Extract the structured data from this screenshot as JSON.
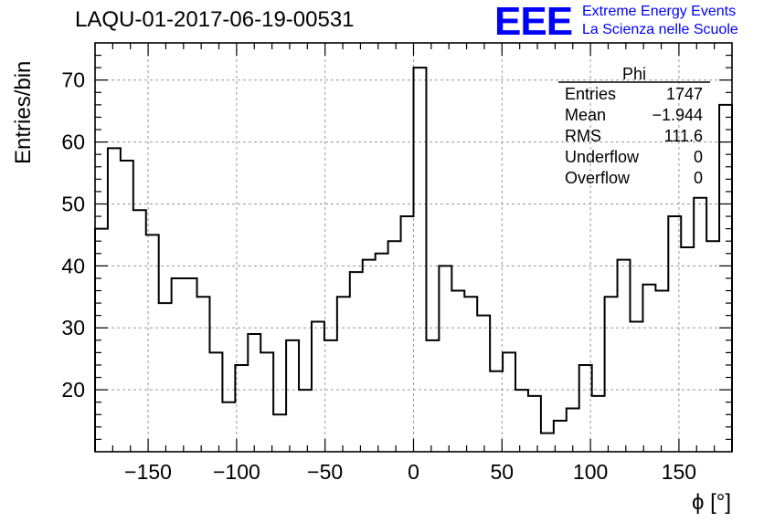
{
  "title": "LAQU-01-2017-06-19-00531",
  "logo": {
    "mark": "EEE",
    "line1": "Extreme Energy Events",
    "line2": "La Scienza nelle Scuole",
    "color": "#0000ff"
  },
  "stats": {
    "name": "Phi",
    "rows": [
      {
        "label": "Entries",
        "value": "1747"
      },
      {
        "label": "Mean",
        "value": "−1.944"
      },
      {
        "label": "RMS",
        "value": "111.6"
      },
      {
        "label": "Underflow",
        "value": "0"
      },
      {
        "label": "Overflow",
        "value": "0"
      }
    ]
  },
  "chart_data": {
    "type": "histogram",
    "xlabel": "ϕ [°]",
    "ylabel": "Entries/bin",
    "xlim": [
      -180,
      180
    ],
    "ylim": [
      10,
      76
    ],
    "bin_width": 7.2,
    "xticks": [
      -150,
      -100,
      -50,
      0,
      50,
      100,
      150
    ],
    "yticks": [
      20,
      30,
      40,
      50,
      60,
      70
    ],
    "grid": true,
    "values": [
      46,
      59,
      57,
      49,
      45,
      34,
      38,
      38,
      35,
      26,
      18,
      24,
      29,
      26,
      16,
      28,
      20,
      31,
      28,
      35,
      39,
      41,
      42,
      44,
      48,
      72,
      28,
      40,
      36,
      35,
      32,
      23,
      26,
      20,
      19,
      13,
      15,
      17,
      24,
      19,
      35,
      41,
      31,
      37,
      36,
      48,
      43,
      51,
      44,
      66
    ]
  }
}
